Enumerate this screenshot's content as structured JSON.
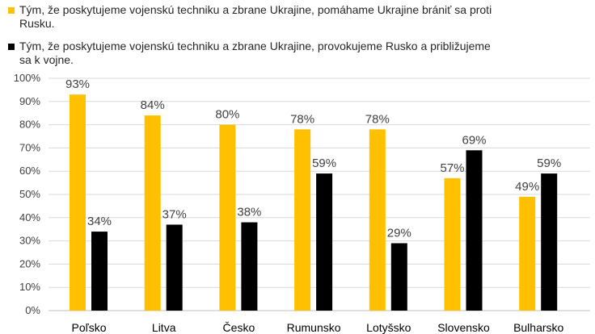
{
  "chart_data": {
    "type": "bar",
    "categories": [
      "Poľsko",
      "Litva",
      "Česko",
      "Rumunsko",
      "Lotyšsko",
      "Slovensko",
      "Bulharsko"
    ],
    "series": [
      {
        "name": "Tým, že poskytujeme vojenskú techniku a zbrane Ukrajine, pomáhame Ukrajine brániť sa proti Rusku.",
        "color": "#FFC000",
        "values": [
          93,
          84,
          80,
          78,
          78,
          57,
          49
        ],
        "labels": [
          "93%",
          "84%",
          "80%",
          "78%",
          "78%",
          "57%",
          "49%"
        ]
      },
      {
        "name": "Tým, že poskytujeme vojenskú techniku a zbrane Ukrajine, provokujeme Rusko a približujeme sa k vojne.",
        "color": "#000000",
        "values": [
          34,
          37,
          38,
          59,
          29,
          69,
          59
        ],
        "labels": [
          "34%",
          "37%",
          "38%",
          "59%",
          "29%",
          "69%",
          "59%"
        ]
      }
    ],
    "y_ticks": [
      "0%",
      "10%",
      "20%",
      "30%",
      "40%",
      "50%",
      "60%",
      "70%",
      "80%",
      "90%",
      "100%"
    ],
    "ylim": [
      0,
      100
    ],
    "grid": true,
    "legend_position": "top-left"
  }
}
